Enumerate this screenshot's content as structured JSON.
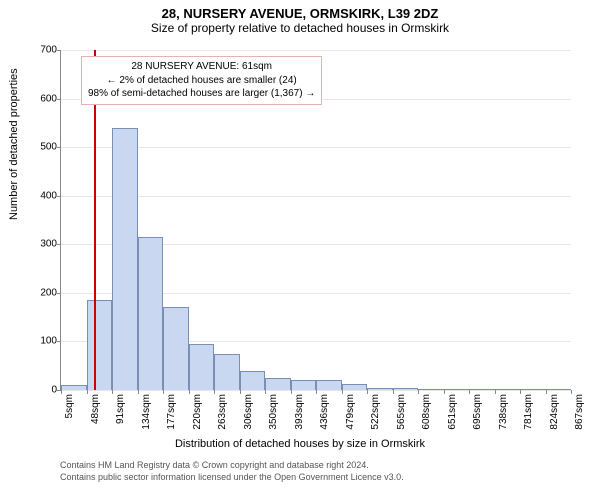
{
  "header": {
    "title": "28, NURSERY AVENUE, ORMSKIRK, L39 2DZ",
    "subtitle": "Size of property relative to detached houses in Ormskirk"
  },
  "chart": {
    "type": "histogram",
    "ylabel": "Number of detached properties",
    "xlabel": "Distribution of detached houses by size in Ormskirk",
    "ylim_max": 700,
    "ytick_step": 100,
    "yticks": [
      0,
      100,
      200,
      300,
      400,
      500,
      600,
      700
    ],
    "xticks": [
      "5sqm",
      "48sqm",
      "91sqm",
      "134sqm",
      "177sqm",
      "220sqm",
      "263sqm",
      "306sqm",
      "350sqm",
      "393sqm",
      "436sqm",
      "479sqm",
      "522sqm",
      "565sqm",
      "608sqm",
      "651sqm",
      "695sqm",
      "738sqm",
      "781sqm",
      "824sqm",
      "867sqm"
    ],
    "values": [
      10,
      185,
      540,
      315,
      170,
      95,
      75,
      40,
      25,
      20,
      20,
      12,
      5,
      4,
      0,
      3,
      0,
      0,
      0,
      0
    ],
    "bar_fill": "#c9d8f0",
    "bar_stroke": "#7a8fb5",
    "background_color": "#ffffff",
    "grid_color": "#e6e6e6",
    "axis_color": "#888888",
    "marker_value": 61,
    "marker_color": "#cc0000"
  },
  "annotation": {
    "line1": "28 NURSERY AVENUE: 61sqm",
    "line2": "← 2% of detached houses are smaller (24)",
    "line3": "98% of semi-detached houses are larger (1,367) →",
    "border_color": "#e8b0b0"
  },
  "footer": {
    "line1": "Contains HM Land Registry data © Crown copyright and database right 2024.",
    "line2": "Contains public sector information licensed under the Open Government Licence v3.0."
  }
}
